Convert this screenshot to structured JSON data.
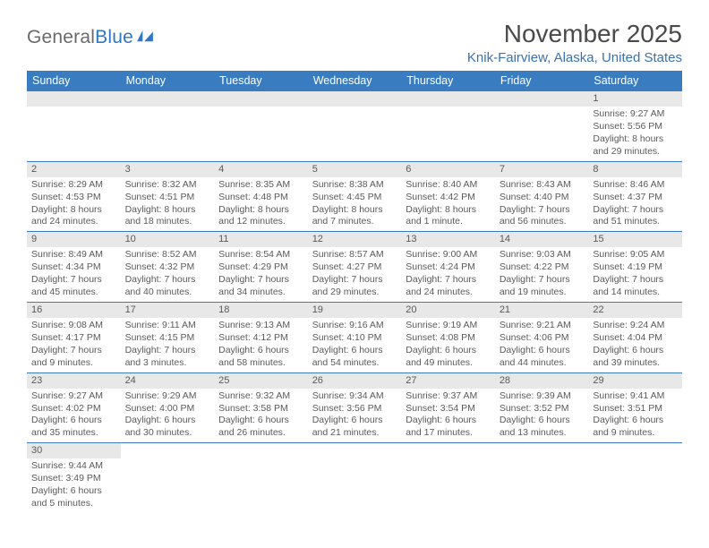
{
  "logo": {
    "word1": "General",
    "word2": "Blue"
  },
  "header": {
    "title": "November 2025",
    "location": "Knik-Fairview, Alaska, United States"
  },
  "colors": {
    "header_bg": "#3a7cc0",
    "header_fg": "#ffffff",
    "daynum_bg": "#e8e8e8",
    "text_gray": "#595959",
    "rule": "#3a7cc0",
    "subtitle": "#3a72b0",
    "logo_gray": "#6a6a6a",
    "logo_blue": "#2f78c3"
  },
  "dayHeaders": [
    "Sunday",
    "Monday",
    "Tuesday",
    "Wednesday",
    "Thursday",
    "Friday",
    "Saturday"
  ],
  "weeks": [
    [
      null,
      null,
      null,
      null,
      null,
      null,
      {
        "n": "1",
        "sunrise": "9:27 AM",
        "sunset": "5:56 PM",
        "dl1": "Daylight: 8 hours",
        "dl2": "and 29 minutes."
      }
    ],
    [
      {
        "n": "2",
        "sunrise": "8:29 AM",
        "sunset": "4:53 PM",
        "dl1": "Daylight: 8 hours",
        "dl2": "and 24 minutes."
      },
      {
        "n": "3",
        "sunrise": "8:32 AM",
        "sunset": "4:51 PM",
        "dl1": "Daylight: 8 hours",
        "dl2": "and 18 minutes."
      },
      {
        "n": "4",
        "sunrise": "8:35 AM",
        "sunset": "4:48 PM",
        "dl1": "Daylight: 8 hours",
        "dl2": "and 12 minutes."
      },
      {
        "n": "5",
        "sunrise": "8:38 AM",
        "sunset": "4:45 PM",
        "dl1": "Daylight: 8 hours",
        "dl2": "and 7 minutes."
      },
      {
        "n": "6",
        "sunrise": "8:40 AM",
        "sunset": "4:42 PM",
        "dl1": "Daylight: 8 hours",
        "dl2": "and 1 minute."
      },
      {
        "n": "7",
        "sunrise": "8:43 AM",
        "sunset": "4:40 PM",
        "dl1": "Daylight: 7 hours",
        "dl2": "and 56 minutes."
      },
      {
        "n": "8",
        "sunrise": "8:46 AM",
        "sunset": "4:37 PM",
        "dl1": "Daylight: 7 hours",
        "dl2": "and 51 minutes."
      }
    ],
    [
      {
        "n": "9",
        "sunrise": "8:49 AM",
        "sunset": "4:34 PM",
        "dl1": "Daylight: 7 hours",
        "dl2": "and 45 minutes."
      },
      {
        "n": "10",
        "sunrise": "8:52 AM",
        "sunset": "4:32 PM",
        "dl1": "Daylight: 7 hours",
        "dl2": "and 40 minutes."
      },
      {
        "n": "11",
        "sunrise": "8:54 AM",
        "sunset": "4:29 PM",
        "dl1": "Daylight: 7 hours",
        "dl2": "and 34 minutes."
      },
      {
        "n": "12",
        "sunrise": "8:57 AM",
        "sunset": "4:27 PM",
        "dl1": "Daylight: 7 hours",
        "dl2": "and 29 minutes."
      },
      {
        "n": "13",
        "sunrise": "9:00 AM",
        "sunset": "4:24 PM",
        "dl1": "Daylight: 7 hours",
        "dl2": "and 24 minutes."
      },
      {
        "n": "14",
        "sunrise": "9:03 AM",
        "sunset": "4:22 PM",
        "dl1": "Daylight: 7 hours",
        "dl2": "and 19 minutes."
      },
      {
        "n": "15",
        "sunrise": "9:05 AM",
        "sunset": "4:19 PM",
        "dl1": "Daylight: 7 hours",
        "dl2": "and 14 minutes."
      }
    ],
    [
      {
        "n": "16",
        "sunrise": "9:08 AM",
        "sunset": "4:17 PM",
        "dl1": "Daylight: 7 hours",
        "dl2": "and 9 minutes."
      },
      {
        "n": "17",
        "sunrise": "9:11 AM",
        "sunset": "4:15 PM",
        "dl1": "Daylight: 7 hours",
        "dl2": "and 3 minutes."
      },
      {
        "n": "18",
        "sunrise": "9:13 AM",
        "sunset": "4:12 PM",
        "dl1": "Daylight: 6 hours",
        "dl2": "and 58 minutes."
      },
      {
        "n": "19",
        "sunrise": "9:16 AM",
        "sunset": "4:10 PM",
        "dl1": "Daylight: 6 hours",
        "dl2": "and 54 minutes."
      },
      {
        "n": "20",
        "sunrise": "9:19 AM",
        "sunset": "4:08 PM",
        "dl1": "Daylight: 6 hours",
        "dl2": "and 49 minutes."
      },
      {
        "n": "21",
        "sunrise": "9:21 AM",
        "sunset": "4:06 PM",
        "dl1": "Daylight: 6 hours",
        "dl2": "and 44 minutes."
      },
      {
        "n": "22",
        "sunrise": "9:24 AM",
        "sunset": "4:04 PM",
        "dl1": "Daylight: 6 hours",
        "dl2": "and 39 minutes."
      }
    ],
    [
      {
        "n": "23",
        "sunrise": "9:27 AM",
        "sunset": "4:02 PM",
        "dl1": "Daylight: 6 hours",
        "dl2": "and 35 minutes."
      },
      {
        "n": "24",
        "sunrise": "9:29 AM",
        "sunset": "4:00 PM",
        "dl1": "Daylight: 6 hours",
        "dl2": "and 30 minutes."
      },
      {
        "n": "25",
        "sunrise": "9:32 AM",
        "sunset": "3:58 PM",
        "dl1": "Daylight: 6 hours",
        "dl2": "and 26 minutes."
      },
      {
        "n": "26",
        "sunrise": "9:34 AM",
        "sunset": "3:56 PM",
        "dl1": "Daylight: 6 hours",
        "dl2": "and 21 minutes."
      },
      {
        "n": "27",
        "sunrise": "9:37 AM",
        "sunset": "3:54 PM",
        "dl1": "Daylight: 6 hours",
        "dl2": "and 17 minutes."
      },
      {
        "n": "28",
        "sunrise": "9:39 AM",
        "sunset": "3:52 PM",
        "dl1": "Daylight: 6 hours",
        "dl2": "and 13 minutes."
      },
      {
        "n": "29",
        "sunrise": "9:41 AM",
        "sunset": "3:51 PM",
        "dl1": "Daylight: 6 hours",
        "dl2": "and 9 minutes."
      }
    ],
    [
      {
        "n": "30",
        "sunrise": "9:44 AM",
        "sunset": "3:49 PM",
        "dl1": "Daylight: 6 hours",
        "dl2": "and 5 minutes."
      },
      null,
      null,
      null,
      null,
      null,
      null
    ]
  ],
  "labels": {
    "sunrise": "Sunrise: ",
    "sunset": "Sunset: "
  }
}
